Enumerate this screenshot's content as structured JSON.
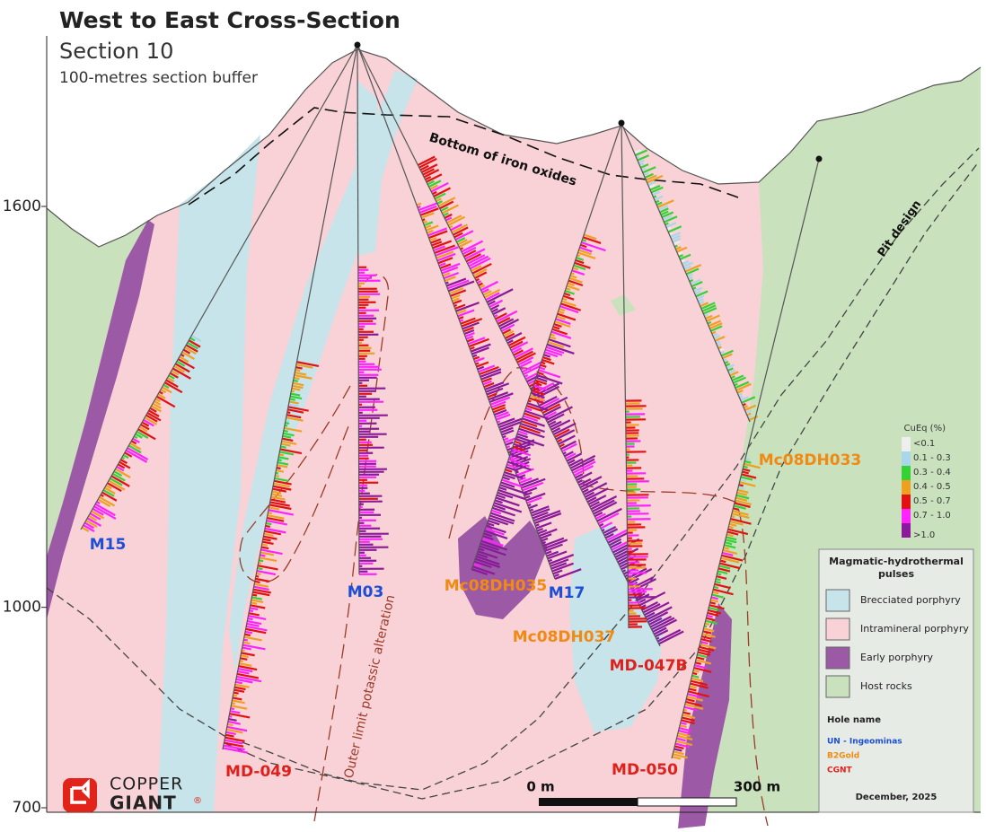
{
  "header": {
    "title": "West to East Cross-Section",
    "section": "Section 10",
    "buffer": "100-metres section buffer"
  },
  "elevation_ticks": [
    1600,
    1000,
    700
  ],
  "annotations": {
    "iron_oxides": "Bottom of iron oxides",
    "pit": "Pit design",
    "potassic": "Outer limit potassic alteration"
  },
  "holes": [
    {
      "label": "M15",
      "group": 0
    },
    {
      "label": "MD-049",
      "group": 2
    },
    {
      "label": "M03",
      "group": 0
    },
    {
      "label": "M17",
      "group": 0
    },
    {
      "label": "MD-047B",
      "group": 2
    },
    {
      "label": "Mc08DH035",
      "group": 1
    },
    {
      "label": "Mc08DH037",
      "group": 1
    },
    {
      "label": "Mc08DH033",
      "group": 1
    },
    {
      "label": "MD-050",
      "group": 2
    }
  ],
  "grade_legend": {
    "title": "CuEq (%)",
    "classes": [
      {
        "label": "<0.1",
        "color": "#eeeeee"
      },
      {
        "label": "0.1 - 0.3",
        "color": "#a9d6ea"
      },
      {
        "label": "0.3 - 0.4",
        "color": "#35d135"
      },
      {
        "label": "0.4 - 0.5",
        "color": "#f0a020"
      },
      {
        "label": "0.5 - 0.7",
        "color": "#e31212"
      },
      {
        "label": "0.7 - 1.0",
        "color": "#ff22ff"
      },
      {
        "label": ">1.0",
        "color": "#8a1a9a"
      }
    ]
  },
  "legend": {
    "title": "Magmatic-hydrothermal pulses",
    "units": [
      {
        "label": "Brecciated porphyry",
        "color": "#c7e4ea"
      },
      {
        "label": "Intramineral porphyry",
        "color": "#f8d2d6"
      },
      {
        "label": "Early porphyry",
        "color": "#9c5aa6"
      },
      {
        "label": "Host rocks",
        "color": "#c9e2bd"
      }
    ],
    "hole_title": "Hole name",
    "groups": [
      {
        "label": "UN - Ingeominas",
        "color": "#1d4fd6"
      },
      {
        "label": "B2Gold",
        "color": "#f08a12"
      },
      {
        "label": "CGNT",
        "color": "#e0201c"
      }
    ],
    "date": "December, 2025"
  },
  "scale_bar": {
    "start": "0 m",
    "end": "300 m"
  },
  "logo": {
    "line1": "COPPER",
    "line2": "GIANT",
    "mark": "®"
  }
}
